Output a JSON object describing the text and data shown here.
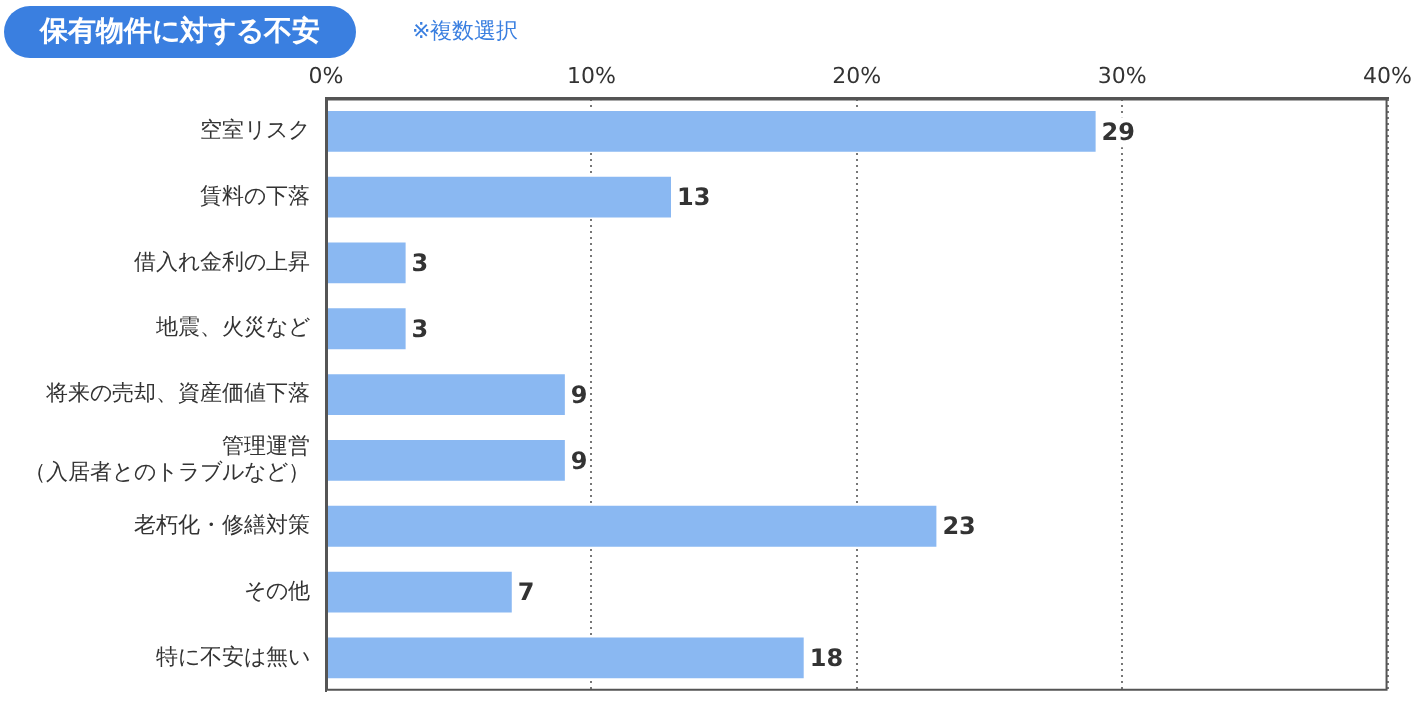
{
  "chart_data": {
    "type": "bar",
    "orientation": "horizontal",
    "title": "保有物件に対する不安",
    "subtitle": "※複数選択",
    "categories": [
      "空室リスク",
      "賃料の下落",
      "借入れ金利の上昇",
      "地震、火災など",
      "将来の売却、資産価値下落",
      "管理運営（入居者とのトラブルなど）",
      "老朽化・修繕対策",
      "その他",
      "特に不安は無い"
    ],
    "values": [
      29,
      13,
      3,
      3,
      9,
      9,
      23,
      7,
      18
    ],
    "color": "#8ab8f2",
    "xlim": [
      0,
      40
    ],
    "xticks": [
      {
        "value": 0,
        "label": "0%"
      },
      {
        "value": 10,
        "label": "10%"
      },
      {
        "value": 20,
        "label": "20%"
      },
      {
        "value": 30,
        "label": "30%"
      },
      {
        "value": 40,
        "label": "40%"
      }
    ],
    "grid": "x",
    "data_labels": true,
    "legend": false
  }
}
